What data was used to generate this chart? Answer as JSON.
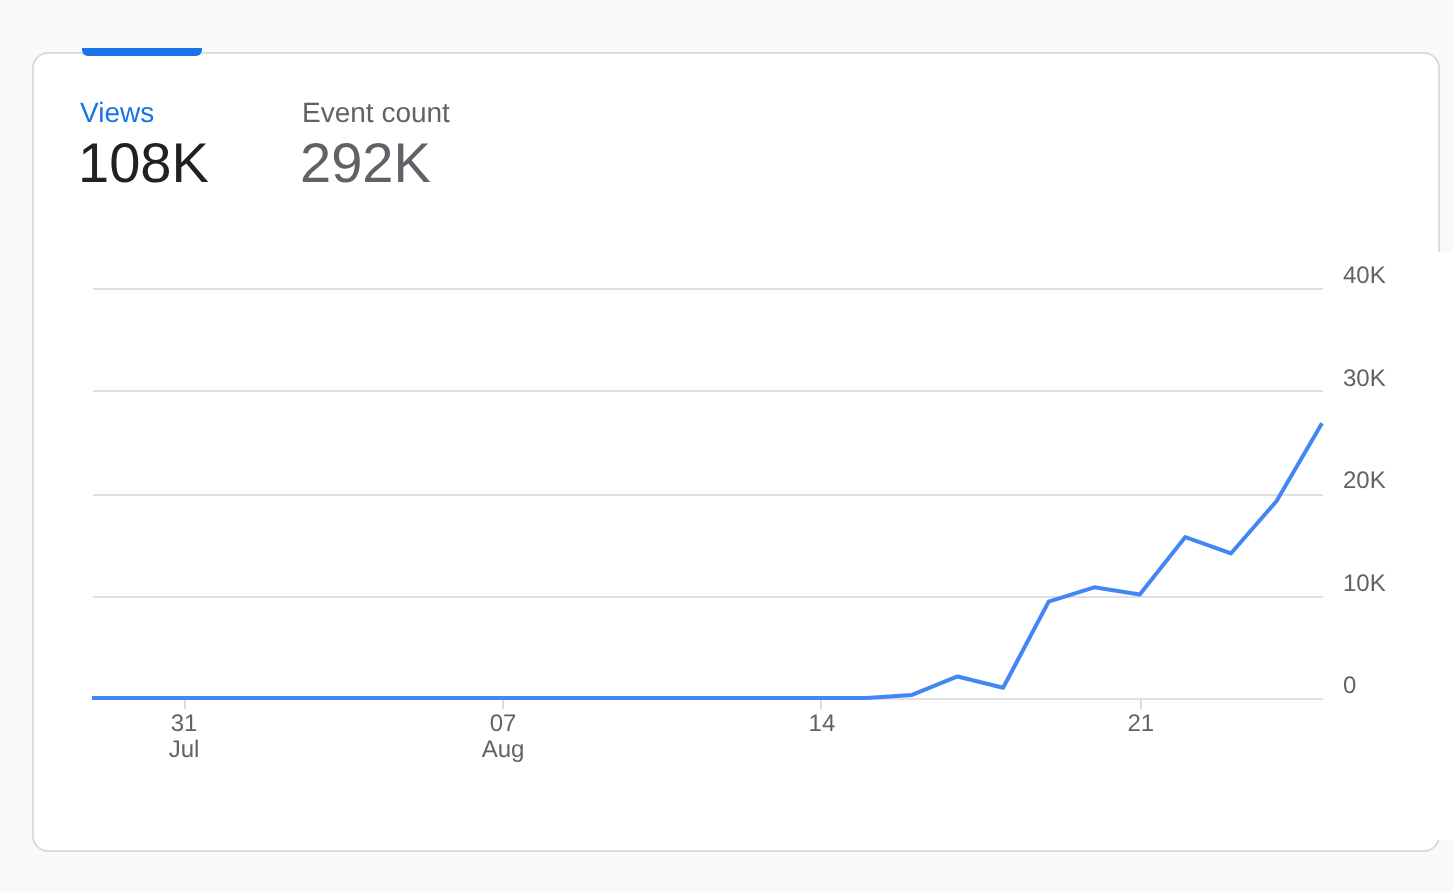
{
  "chart_data": {
    "type": "line",
    "x": [
      "--07-29",
      "--07-30",
      "--07-31",
      "--08-01",
      "--08-02",
      "--08-03",
      "--08-04",
      "--08-05",
      "--08-06",
      "--08-07",
      "--08-08",
      "--08-09",
      "--08-10",
      "--08-11",
      "--08-12",
      "--08-13",
      "--08-14",
      "--08-15",
      "--08-16",
      "--08-17",
      "--08-18",
      "--08-19",
      "--08-20",
      "--08-21",
      "--08-22",
      "--08-23",
      "--08-24",
      "--08-25"
    ],
    "series": [
      {
        "name": "Views",
        "color": "#4285f4",
        "values": [
          0,
          0,
          0,
          0,
          0,
          0,
          0,
          0,
          0,
          0,
          0,
          0,
          0,
          0,
          0,
          0,
          0,
          0,
          300,
          2100,
          1000,
          9400,
          10800,
          10100,
          15700,
          14100,
          19200,
          26800
        ]
      }
    ],
    "annotations": [
      "108K",
      "Event count",
      "292K"
    ],
    "xlim": [
      "--07-29",
      "--08-25"
    ],
    "xticks": [
      {
        "value": "--07-31",
        "label": "31\nJul"
      },
      {
        "value": "--08-07",
        "label": "07\nAug"
      },
      {
        "value": "--08-14",
        "label": "14"
      },
      {
        "value": "--08-21",
        "label": "21"
      }
    ],
    "ylim": [
      0,
      40000
    ],
    "yticks": [
      0,
      {
        "value": 10000,
        "label": "10K"
      },
      {
        "value": 20000,
        "label": "20K"
      },
      {
        "value": 30000,
        "label": "30K"
      },
      {
        "value": 40000,
        "label": "40K"
      }
    ],
    "grid": "y",
    "marker": "none",
    "line_style": "solid"
  }
}
